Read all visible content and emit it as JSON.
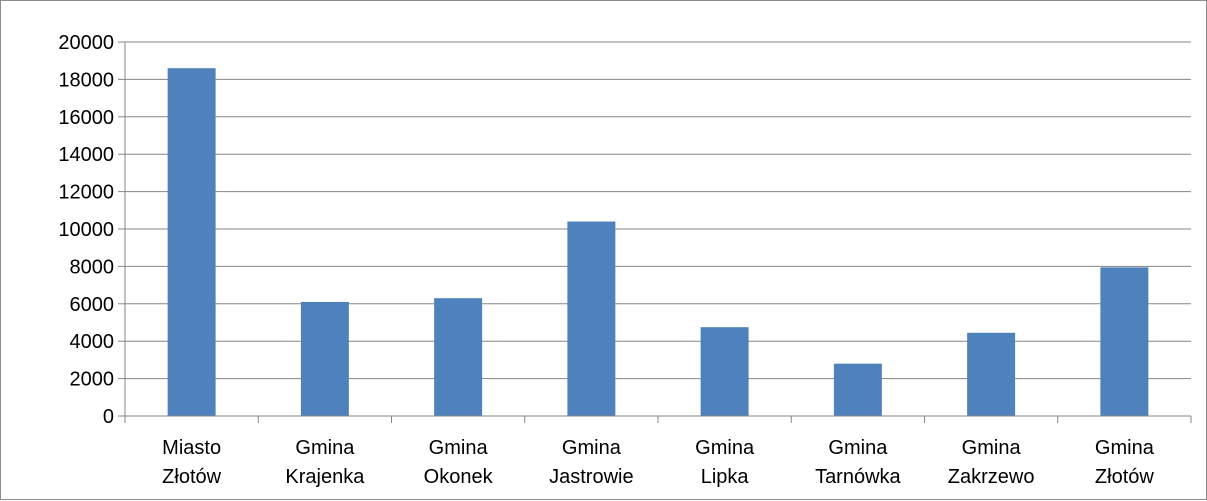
{
  "chart_data": {
    "type": "bar",
    "categories": [
      [
        "Miasto",
        "Złotów"
      ],
      [
        "Gmina",
        "Krajenka"
      ],
      [
        "Gmina",
        "Okonek"
      ],
      [
        "Gmina",
        "Jastrowie"
      ],
      [
        "Gmina",
        "Lipka"
      ],
      [
        "Gmina",
        "Tarnówka"
      ],
      [
        "Gmina",
        "Zakrzewo"
      ],
      [
        "Gmina",
        "Złotów"
      ]
    ],
    "values": [
      18600,
      6100,
      6300,
      10400,
      4750,
      2800,
      4450,
      7950
    ],
    "ylim": [
      0,
      20000
    ],
    "yticks": [
      "0",
      "2000",
      "4000",
      "6000",
      "8000",
      "10000",
      "12000",
      "14000",
      "16000",
      "18000",
      "20000"
    ],
    "grid": true,
    "legend": "none",
    "bar_color": "#4f81bd",
    "grid_color": "#868686"
  }
}
